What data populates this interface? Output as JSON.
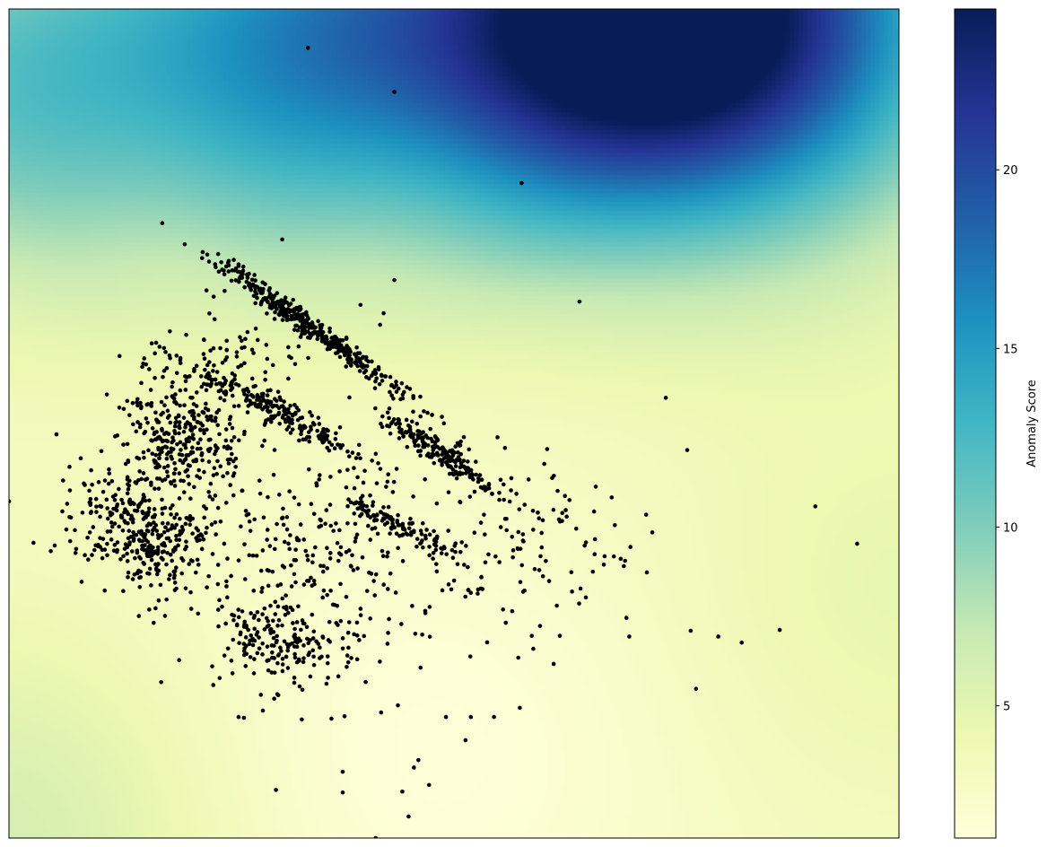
{
  "chart_data": {
    "type": "heatmap",
    "title": "",
    "xlabel": "",
    "ylabel": "",
    "x_ticks_shown": false,
    "y_ticks_shown": false,
    "colormap": "YlGnBu",
    "colormap_stops": [
      "#ffffd9",
      "#edf8b1",
      "#c7e9b4",
      "#7fcdbb",
      "#41b6c4",
      "#1d91c0",
      "#225ea8",
      "#253494",
      "#081d58"
    ],
    "colorbar": {
      "label": "Anomaly Score",
      "range": [
        1.3,
        24.5
      ],
      "ticks": [
        5,
        10,
        15,
        20
      ],
      "tick_labels": [
        "5",
        "10",
        "15",
        "20"
      ]
    },
    "heatmap_field": {
      "base_value": 3.0,
      "low_center_u": 0.47,
      "low_center_v": 0.1,
      "hotspots": [
        {
          "u": 0.7,
          "v": 1.0,
          "score": 24.0
        },
        {
          "u": 0.4,
          "v": 0.95,
          "score": 13.0
        },
        {
          "u": 0.05,
          "v": 0.93,
          "score": 12.0
        },
        {
          "u": 0.9,
          "v": 0.95,
          "score": 11.0
        },
        {
          "u": 0.0,
          "v": 0.0,
          "score": 6.0
        },
        {
          "u": 1.0,
          "v": 0.3,
          "score": 4.5
        }
      ]
    },
    "scatter": {
      "marker_color": "#000000",
      "outliers": [
        [
          0.336,
          0.953
        ],
        [
          0.433,
          0.9
        ],
        [
          0.576,
          0.79
        ],
        [
          0.307,
          0.722
        ],
        [
          0.258,
          0.69
        ],
        [
          0.433,
          0.673
        ],
        [
          0.641,
          0.647
        ],
        [
          0.395,
          0.643
        ],
        [
          0.421,
          0.633
        ],
        [
          0.417,
          0.619
        ],
        [
          0.23,
          0.653
        ],
        [
          0.738,
          0.531
        ],
        [
          0.762,
          0.468
        ],
        [
          0.906,
          0.4
        ],
        [
          0.953,
          0.355
        ],
        [
          0.0,
          0.406
        ],
        [
          0.047,
          0.346
        ],
        [
          0.06,
          0.394
        ],
        [
          0.866,
          0.251
        ],
        [
          0.797,
          0.243
        ],
        [
          0.766,
          0.25
        ],
        [
          0.772,
          0.18
        ],
        [
          0.697,
          0.243
        ],
        [
          0.612,
          0.21
        ],
        [
          0.574,
          0.157
        ],
        [
          0.545,
          0.146
        ],
        [
          0.519,
          0.146
        ],
        [
          0.491,
          0.146
        ],
        [
          0.513,
          0.118
        ],
        [
          0.437,
          0.16
        ],
        [
          0.3,
          0.058
        ],
        [
          0.375,
          0.08
        ],
        [
          0.375,
          0.055
        ],
        [
          0.46,
          0.094
        ],
        [
          0.455,
          0.085
        ],
        [
          0.472,
          0.064
        ],
        [
          0.442,
          0.056
        ],
        [
          0.449,
          0.026
        ],
        [
          0.412,
          0.0
        ],
        [
          0.171,
          0.188
        ],
        [
          0.329,
          0.143
        ],
        [
          0.264,
          0.145
        ],
        [
          0.258,
          0.146
        ],
        [
          0.11,
          0.535
        ]
      ],
      "clusters": [
        {
          "cu": 0.34,
          "cv": 0.615,
          "su": 0.07,
          "sv": 0.006,
          "angle_deg": -38,
          "count": 420
        },
        {
          "cu": 0.3,
          "cv": 0.515,
          "su": 0.06,
          "sv": 0.008,
          "angle_deg": -30,
          "count": 230
        },
        {
          "cu": 0.49,
          "cv": 0.46,
          "su": 0.045,
          "sv": 0.007,
          "angle_deg": -35,
          "count": 200
        },
        {
          "cu": 0.44,
          "cv": 0.375,
          "su": 0.038,
          "sv": 0.008,
          "angle_deg": -30,
          "count": 110
        },
        {
          "cu": 0.195,
          "cv": 0.48,
          "su": 0.04,
          "sv": 0.035,
          "angle_deg": -40,
          "count": 330
        },
        {
          "cu": 0.15,
          "cv": 0.37,
          "su": 0.045,
          "sv": 0.03,
          "angle_deg": -25,
          "count": 380
        },
        {
          "cu": 0.3,
          "cv": 0.24,
          "su": 0.04,
          "sv": 0.025,
          "angle_deg": -20,
          "count": 160
        },
        {
          "cu": 0.35,
          "cv": 0.33,
          "su": 0.05,
          "sv": 0.07,
          "angle_deg": 0,
          "count": 230
        },
        {
          "cu": 0.56,
          "cv": 0.35,
          "su": 0.08,
          "sv": 0.06,
          "angle_deg": 0,
          "count": 150
        },
        {
          "cu": 0.25,
          "cv": 0.58,
          "su": 0.05,
          "sv": 0.03,
          "angle_deg": 0,
          "count": 80
        }
      ],
      "random_seed": 7
    }
  }
}
